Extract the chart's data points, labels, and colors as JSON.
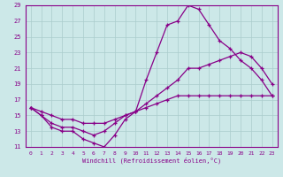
{
  "xlabel": "Windchill (Refroidissement éolien,°C)",
  "ylabel": "",
  "xlim": [
    -0.5,
    23.5
  ],
  "ylim": [
    11,
    29
  ],
  "yticks": [
    11,
    13,
    15,
    17,
    19,
    21,
    23,
    25,
    27,
    29
  ],
  "xticks": [
    0,
    1,
    2,
    3,
    4,
    5,
    6,
    7,
    8,
    9,
    10,
    11,
    12,
    13,
    14,
    15,
    16,
    17,
    18,
    19,
    20,
    21,
    22,
    23
  ],
  "bg_color": "#cce8e8",
  "line_color": "#880088",
  "grid_color": "#aacccc",
  "hours": [
    0,
    1,
    2,
    3,
    4,
    5,
    6,
    7,
    8,
    9,
    10,
    11,
    12,
    13,
    14,
    15,
    16,
    17,
    18,
    19,
    20,
    21,
    22,
    23
  ],
  "line1": [
    16,
    15,
    13.5,
    13,
    13,
    12,
    11.5,
    11,
    12.5,
    14.5,
    15.5,
    19.5,
    23,
    26.5,
    27,
    29,
    28.5,
    26.5,
    24.5,
    23.5,
    22,
    21,
    19.5,
    17.5
  ],
  "line2": [
    16,
    15,
    14,
    13.5,
    13.5,
    13,
    12.5,
    13,
    14,
    15,
    15.5,
    16.5,
    17.5,
    18.5,
    19.5,
    21,
    21,
    21.5,
    22,
    22.5,
    23,
    22.5,
    21,
    19
  ],
  "line3": [
    16,
    15.5,
    15,
    14.5,
    14.5,
    14,
    14,
    14,
    14.5,
    15,
    15.5,
    16,
    16.5,
    17,
    17.5,
    17.5,
    17.5,
    17.5,
    17.5,
    17.5,
    17.5,
    17.5,
    17.5,
    17.5
  ]
}
